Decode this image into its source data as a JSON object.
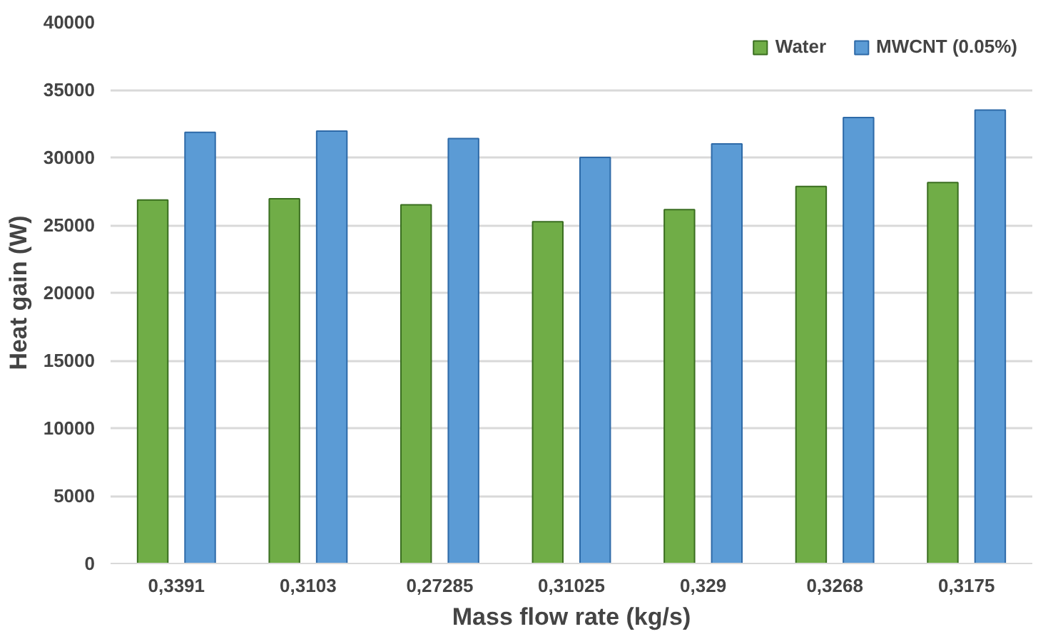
{
  "chart_data": {
    "type": "bar",
    "xlabel": "Mass flow rate (kg/s)",
    "ylabel": "Heat gain (W)",
    "categories": [
      "0,3391",
      "0,3103",
      "0,27285",
      "0,31025",
      "0,329",
      "0,3268",
      "0,3175"
    ],
    "series": [
      {
        "name": "Water",
        "color": "#70ad47",
        "values": [
          26850,
          26950,
          26500,
          25250,
          26150,
          27850,
          28150
        ]
      },
      {
        "name": "MWCNT (0.05%)",
        "color": "#5b9bd5",
        "values": [
          31850,
          31950,
          31400,
          30000,
          31000,
          32950,
          33500
        ]
      }
    ],
    "ylim": [
      0,
      40000
    ],
    "yticks": [
      0,
      5000,
      10000,
      15000,
      20000,
      25000,
      30000,
      35000,
      40000
    ],
    "grid": "y",
    "legend": "top right"
  }
}
